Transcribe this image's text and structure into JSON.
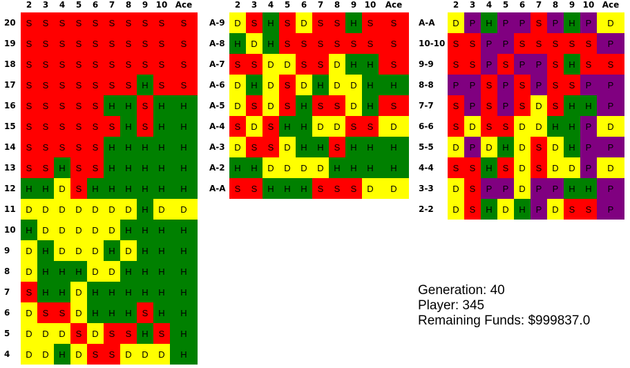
{
  "columns": [
    "2",
    "3",
    "4",
    "5",
    "6",
    "7",
    "8",
    "9",
    "10",
    "Ace"
  ],
  "hard_table": {
    "rows": [
      {
        "label": "20",
        "cells": [
          "S",
          "S",
          "S",
          "S",
          "S",
          "S",
          "S",
          "S",
          "S",
          "S"
        ]
      },
      {
        "label": "19",
        "cells": [
          "S",
          "S",
          "S",
          "S",
          "S",
          "S",
          "S",
          "S",
          "S",
          "S"
        ]
      },
      {
        "label": "18",
        "cells": [
          "S",
          "S",
          "S",
          "S",
          "S",
          "S",
          "S",
          "S",
          "S",
          "S"
        ]
      },
      {
        "label": "17",
        "cells": [
          "S",
          "S",
          "S",
          "S",
          "S",
          "S",
          "S",
          "H",
          "S",
          "S"
        ]
      },
      {
        "label": "16",
        "cells": [
          "S",
          "S",
          "S",
          "S",
          "S",
          "H",
          "H",
          "S",
          "H",
          "H"
        ]
      },
      {
        "label": "15",
        "cells": [
          "S",
          "S",
          "S",
          "S",
          "S",
          "S",
          "H",
          "S",
          "H",
          "H"
        ]
      },
      {
        "label": "14",
        "cells": [
          "S",
          "S",
          "S",
          "S",
          "S",
          "H",
          "H",
          "H",
          "H",
          "H"
        ]
      },
      {
        "label": "13",
        "cells": [
          "S",
          "S",
          "H",
          "S",
          "S",
          "H",
          "H",
          "H",
          "H",
          "H"
        ]
      },
      {
        "label": "12",
        "cells": [
          "H",
          "H",
          "D",
          "S",
          "H",
          "H",
          "H",
          "H",
          "H",
          "H"
        ]
      },
      {
        "label": "11",
        "cells": [
          "D",
          "D",
          "D",
          "D",
          "D",
          "D",
          "D",
          "H",
          "D",
          "D"
        ]
      },
      {
        "label": "10",
        "cells": [
          "H",
          "D",
          "D",
          "D",
          "D",
          "D",
          "H",
          "H",
          "H",
          "H"
        ]
      },
      {
        "label": "9",
        "cells": [
          "D",
          "H",
          "D",
          "D",
          "D",
          "H",
          "D",
          "H",
          "H",
          "H"
        ]
      },
      {
        "label": "8",
        "cells": [
          "D",
          "H",
          "H",
          "H",
          "D",
          "D",
          "H",
          "H",
          "H",
          "H"
        ]
      },
      {
        "label": "7",
        "cells": [
          "S",
          "H",
          "H",
          "D",
          "H",
          "H",
          "H",
          "H",
          "H",
          "H"
        ]
      },
      {
        "label": "6",
        "cells": [
          "D",
          "S",
          "S",
          "D",
          "H",
          "H",
          "H",
          "S",
          "H",
          "H"
        ]
      },
      {
        "label": "5",
        "cells": [
          "D",
          "D",
          "D",
          "S",
          "D",
          "S",
          "S",
          "H",
          "S",
          "H"
        ]
      },
      {
        "label": "4",
        "cells": [
          "D",
          "D",
          "H",
          "D",
          "S",
          "S",
          "D",
          "D",
          "D",
          "H"
        ]
      }
    ]
  },
  "soft_table": {
    "rows": [
      {
        "label": "A-9",
        "cells": [
          "D",
          "S",
          "H",
          "S",
          "D",
          "S",
          "S",
          "H",
          "S",
          "S"
        ]
      },
      {
        "label": "A-8",
        "cells": [
          "H",
          "D",
          "H",
          "S",
          "S",
          "S",
          "S",
          "S",
          "S",
          "S"
        ]
      },
      {
        "label": "A-7",
        "cells": [
          "S",
          "S",
          "D",
          "D",
          "S",
          "S",
          "D",
          "H",
          "H",
          "S"
        ]
      },
      {
        "label": "A-6",
        "cells": [
          "D",
          "H",
          "D",
          "S",
          "D",
          "H",
          "D",
          "D",
          "H",
          "H"
        ]
      },
      {
        "label": "A-5",
        "cells": [
          "D",
          "S",
          "D",
          "S",
          "H",
          "S",
          "S",
          "D",
          "H",
          "S"
        ]
      },
      {
        "label": "A-4",
        "cells": [
          "S",
          "D",
          "S",
          "H",
          "H",
          "D",
          "D",
          "S",
          "S",
          "D"
        ]
      },
      {
        "label": "A-3",
        "cells": [
          "D",
          "S",
          "S",
          "D",
          "H",
          "H",
          "S",
          "H",
          "H",
          "H"
        ]
      },
      {
        "label": "A-2",
        "cells": [
          "H",
          "H",
          "D",
          "D",
          "D",
          "D",
          "H",
          "H",
          "H",
          "H"
        ]
      },
      {
        "label": "A-A",
        "cells": [
          "S",
          "S",
          "H",
          "H",
          "H",
          "S",
          "S",
          "S",
          "D",
          "D"
        ]
      }
    ]
  },
  "pairs_table": {
    "rows": [
      {
        "label": "A-A",
        "cells": [
          "D",
          "P",
          "H",
          "P",
          "P",
          "S",
          "P",
          "H",
          "P",
          "D"
        ]
      },
      {
        "label": "10-10",
        "cells": [
          "S",
          "S",
          "P",
          "P",
          "S",
          "S",
          "S",
          "S",
          "S",
          "P"
        ]
      },
      {
        "label": "9-9",
        "cells": [
          "S",
          "S",
          "P",
          "S",
          "P",
          "P",
          "S",
          "H",
          "S",
          "S"
        ]
      },
      {
        "label": "8-8",
        "cells": [
          "P",
          "P",
          "S",
          "P",
          "S",
          "P",
          "S",
          "S",
          "P",
          "P"
        ]
      },
      {
        "label": "7-7",
        "cells": [
          "S",
          "P",
          "S",
          "P",
          "S",
          "D",
          "S",
          "H",
          "H",
          "P"
        ]
      },
      {
        "label": "6-6",
        "cells": [
          "S",
          "D",
          "S",
          "S",
          "D",
          "D",
          "H",
          "H",
          "P",
          "D"
        ]
      },
      {
        "label": "5-5",
        "cells": [
          "D",
          "P",
          "D",
          "H",
          "D",
          "S",
          "D",
          "H",
          "P",
          "P"
        ]
      },
      {
        "label": "4-4",
        "cells": [
          "S",
          "S",
          "H",
          "S",
          "D",
          "S",
          "D",
          "D",
          "P",
          "D"
        ]
      },
      {
        "label": "3-3",
        "cells": [
          "D",
          "S",
          "P",
          "P",
          "D",
          "P",
          "P",
          "H",
          "H",
          "P"
        ]
      },
      {
        "label": "2-2",
        "cells": [
          "D",
          "S",
          "H",
          "D",
          "H",
          "P",
          "D",
          "S",
          "S",
          "P"
        ]
      }
    ]
  },
  "info": {
    "generation": "Generation: 40",
    "player": "Player: 345",
    "funds": "Remaining Funds: $999837.0"
  },
  "colors": {
    "S": "#ff0000",
    "H": "#008000",
    "D": "#ffff00",
    "P": "#800080"
  }
}
